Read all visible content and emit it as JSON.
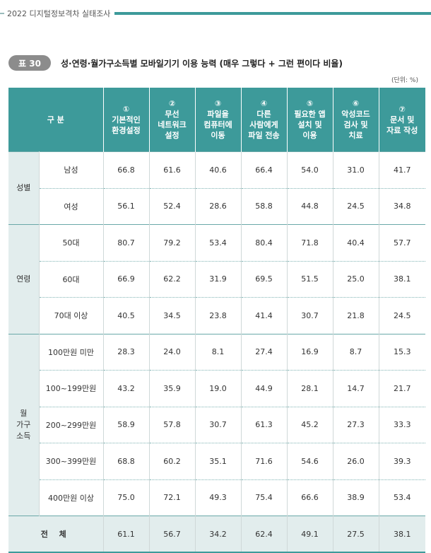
{
  "header": {
    "text": "2022 디지털정보격차 실태조사"
  },
  "table_title": {
    "badge": "표 30",
    "title": "성·연령·월가구소득별 모바일기기 이용 능력 (매우 그렇다 + 그런 편이다 비율)"
  },
  "unit": "(단위: %)",
  "columns": {
    "group_header": "구 분",
    "items": [
      [
        "①",
        "기본적인",
        "환경설정"
      ],
      [
        "②",
        "무선",
        "네트워크",
        "설정"
      ],
      [
        "③",
        "파일을",
        "컴퓨터에",
        "이동"
      ],
      [
        "④",
        "다른",
        "사람에게",
        "파일 전송"
      ],
      [
        "⑤",
        "필요한 앱",
        "설치 및",
        "이용"
      ],
      [
        "⑥",
        "악성코드",
        "검사 및",
        "치료"
      ],
      [
        "⑦",
        "문서 및",
        "자료 작성"
      ]
    ]
  },
  "groups": [
    {
      "label": [
        "성별"
      ],
      "rows": [
        {
          "label": "남성",
          "values": [
            "66.8",
            "61.6",
            "40.6",
            "66.4",
            "54.0",
            "31.0",
            "41.7"
          ]
        },
        {
          "label": "여성",
          "values": [
            "56.1",
            "52.4",
            "28.6",
            "58.8",
            "44.8",
            "24.5",
            "34.8"
          ]
        }
      ]
    },
    {
      "label": [
        "연령"
      ],
      "rows": [
        {
          "label": "50대",
          "values": [
            "80.7",
            "79.2",
            "53.4",
            "80.4",
            "71.8",
            "40.4",
            "57.7"
          ]
        },
        {
          "label": "60대",
          "values": [
            "66.9",
            "62.2",
            "31.9",
            "69.5",
            "51.5",
            "25.0",
            "38.1"
          ]
        },
        {
          "label": "70대 이상",
          "values": [
            "40.5",
            "34.5",
            "23.8",
            "41.4",
            "30.7",
            "21.8",
            "24.5"
          ]
        }
      ]
    },
    {
      "label": [
        "월",
        "가구",
        "소득"
      ],
      "rows": [
        {
          "label": "100만원 미만",
          "values": [
            "28.3",
            "24.0",
            "8.1",
            "27.4",
            "16.9",
            "8.7",
            "15.3"
          ]
        },
        {
          "label": "100~199만원",
          "values": [
            "43.2",
            "35.9",
            "19.0",
            "44.9",
            "28.1",
            "14.7",
            "21.7"
          ]
        },
        {
          "label": "200~299만원",
          "values": [
            "58.9",
            "57.8",
            "30.7",
            "61.3",
            "45.2",
            "27.3",
            "33.3"
          ]
        },
        {
          "label": "300~399만원",
          "values": [
            "68.8",
            "60.2",
            "35.1",
            "71.6",
            "54.6",
            "26.0",
            "39.3"
          ]
        },
        {
          "label": "400만원 이상",
          "values": [
            "75.0",
            "72.1",
            "49.3",
            "75.4",
            "66.6",
            "38.9",
            "53.4"
          ]
        }
      ]
    }
  ],
  "total": {
    "label": "전 체",
    "values": [
      "61.1",
      "56.7",
      "34.2",
      "62.4",
      "49.1",
      "27.5",
      "38.1"
    ]
  },
  "colors": {
    "accent": "#3d9a9a",
    "light": "#e2eded",
    "badge": "#8c8c8c"
  }
}
